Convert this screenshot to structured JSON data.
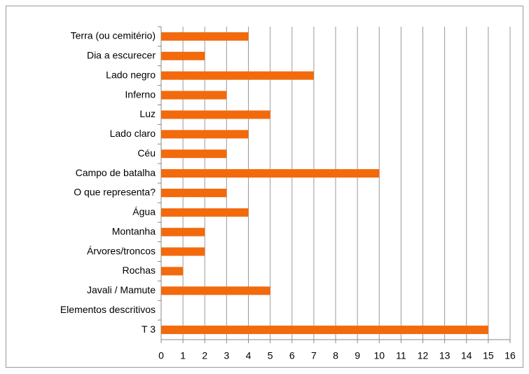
{
  "chart_data": {
    "type": "barh",
    "categories": [
      "Terra (ou cemitério)",
      "Dia a escurecer",
      "Lado negro",
      "Inferno",
      "Luz",
      "Lado claro",
      "Céu",
      "Campo de batalha",
      "O que representa?",
      "Água",
      "Montanha",
      "Árvores/troncos",
      "Rochas",
      "Javali / Mamute",
      "Elementos descritivos",
      "T 3"
    ],
    "values": [
      4,
      2,
      7,
      3,
      5,
      4,
      3,
      10,
      3,
      4,
      2,
      2,
      1,
      5,
      null,
      15
    ],
    "color": "#f26a0c",
    "xlim": [
      0,
      16
    ],
    "xticks": [
      0,
      1,
      2,
      3,
      4,
      5,
      6,
      7,
      8,
      9,
      10,
      11,
      12,
      13,
      14,
      15,
      16
    ],
    "grid": true
  }
}
